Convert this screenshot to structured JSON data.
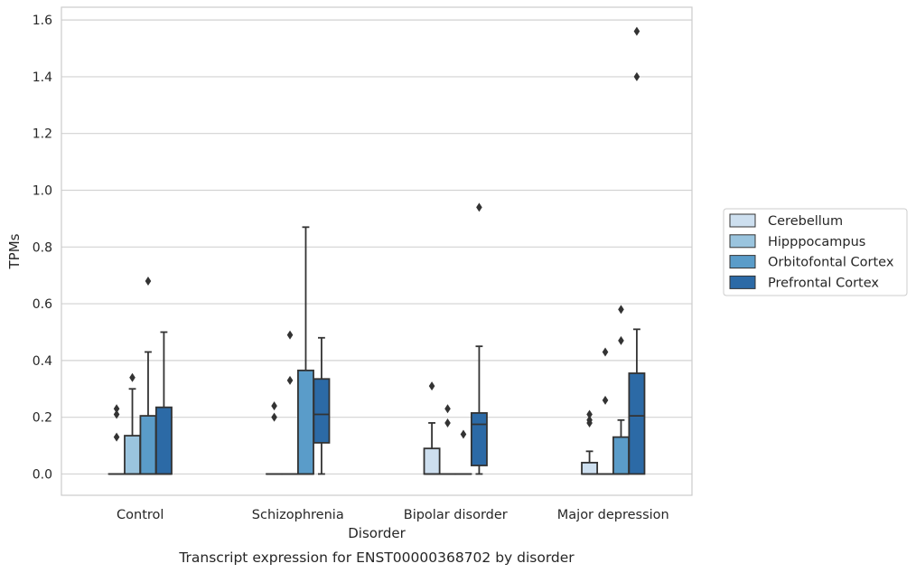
{
  "chart_data": {
    "type": "box",
    "caption": "Transcript expression for ENST00000368702 by disorder",
    "xlabel": "Disorder",
    "ylabel": "TPMs",
    "ylim": [
      -0.075,
      1.645
    ],
    "yticks": [
      0.0,
      0.2,
      0.4,
      0.6,
      0.8,
      1.0,
      1.2,
      1.4,
      1.6
    ],
    "ytick_labels": [
      "0.0",
      "0.2",
      "0.4",
      "0.6",
      "0.8",
      "1.0",
      "1.2",
      "1.4",
      "1.6"
    ],
    "grid": true,
    "legend_position": "right",
    "categories": [
      "Control",
      "Schizophrenia",
      "Bipolar disorder",
      "Major depression"
    ],
    "series": [
      {
        "name": "Cerebellum",
        "color": "#cddfef",
        "boxes": [
          {
            "q1": 0,
            "median": 0,
            "q3": 0,
            "whisker_low": 0,
            "whisker_high": 0,
            "outliers": [
              0.13,
              0.21,
              0.23
            ]
          },
          {
            "q1": 0,
            "median": 0,
            "q3": 0,
            "whisker_low": 0,
            "whisker_high": 0,
            "outliers": [
              0.2,
              0.24
            ]
          },
          {
            "q1": 0,
            "median": 0,
            "q3": 0.09,
            "whisker_low": 0,
            "whisker_high": 0.18,
            "outliers": [
              0.31
            ]
          },
          {
            "q1": 0,
            "median": 0,
            "q3": 0.04,
            "whisker_low": 0,
            "whisker_high": 0.08,
            "outliers": [
              0.18,
              0.19,
              0.21
            ]
          }
        ]
      },
      {
        "name": "Hipppocampus",
        "color": "#9ac4de",
        "boxes": [
          {
            "q1": 0,
            "median": 0,
            "q3": 0.135,
            "whisker_low": 0,
            "whisker_high": 0.3,
            "outliers": [
              0.34
            ]
          },
          {
            "q1": 0,
            "median": 0,
            "q3": 0,
            "whisker_low": 0,
            "whisker_high": 0,
            "outliers": [
              0.33,
              0.49
            ]
          },
          {
            "q1": 0,
            "median": 0,
            "q3": 0,
            "whisker_low": 0,
            "whisker_high": 0,
            "outliers": [
              0.18,
              0.23
            ]
          },
          {
            "q1": 0,
            "median": 0,
            "q3": 0,
            "whisker_low": 0,
            "whisker_high": 0,
            "outliers": [
              0.26,
              0.43
            ]
          }
        ]
      },
      {
        "name": "Orbitofontal Cortex",
        "color": "#5a9cc9",
        "boxes": [
          {
            "q1": 0,
            "median": 0,
            "q3": 0.205,
            "whisker_low": 0,
            "whisker_high": 0.43,
            "outliers": [
              0.68
            ]
          },
          {
            "q1": 0,
            "median": 0,
            "q3": 0.365,
            "whisker_low": 0,
            "whisker_high": 0.87,
            "outliers": []
          },
          {
            "q1": 0,
            "median": 0,
            "q3": 0,
            "whisker_low": 0,
            "whisker_high": 0,
            "outliers": [
              0.14
            ]
          },
          {
            "q1": 0,
            "median": 0,
            "q3": 0.13,
            "whisker_low": 0,
            "whisker_high": 0.19,
            "outliers": [
              0.47,
              0.58
            ]
          }
        ]
      },
      {
        "name": "Prefrontal Cortex",
        "color": "#2c6aa6",
        "boxes": [
          {
            "q1": 0,
            "median": 0,
            "q3": 0.235,
            "whisker_low": 0,
            "whisker_high": 0.5,
            "outliers": []
          },
          {
            "q1": 0.11,
            "median": 0.21,
            "q3": 0.335,
            "whisker_low": 0,
            "whisker_high": 0.48,
            "outliers": []
          },
          {
            "q1": 0.03,
            "median": 0.175,
            "q3": 0.215,
            "whisker_low": 0,
            "whisker_high": 0.45,
            "outliers": [
              0.94
            ]
          },
          {
            "q1": 0,
            "median": 0.205,
            "q3": 0.355,
            "whisker_low": 0,
            "whisker_high": 0.51,
            "outliers": [
              1.4,
              1.56
            ]
          }
        ]
      }
    ]
  }
}
